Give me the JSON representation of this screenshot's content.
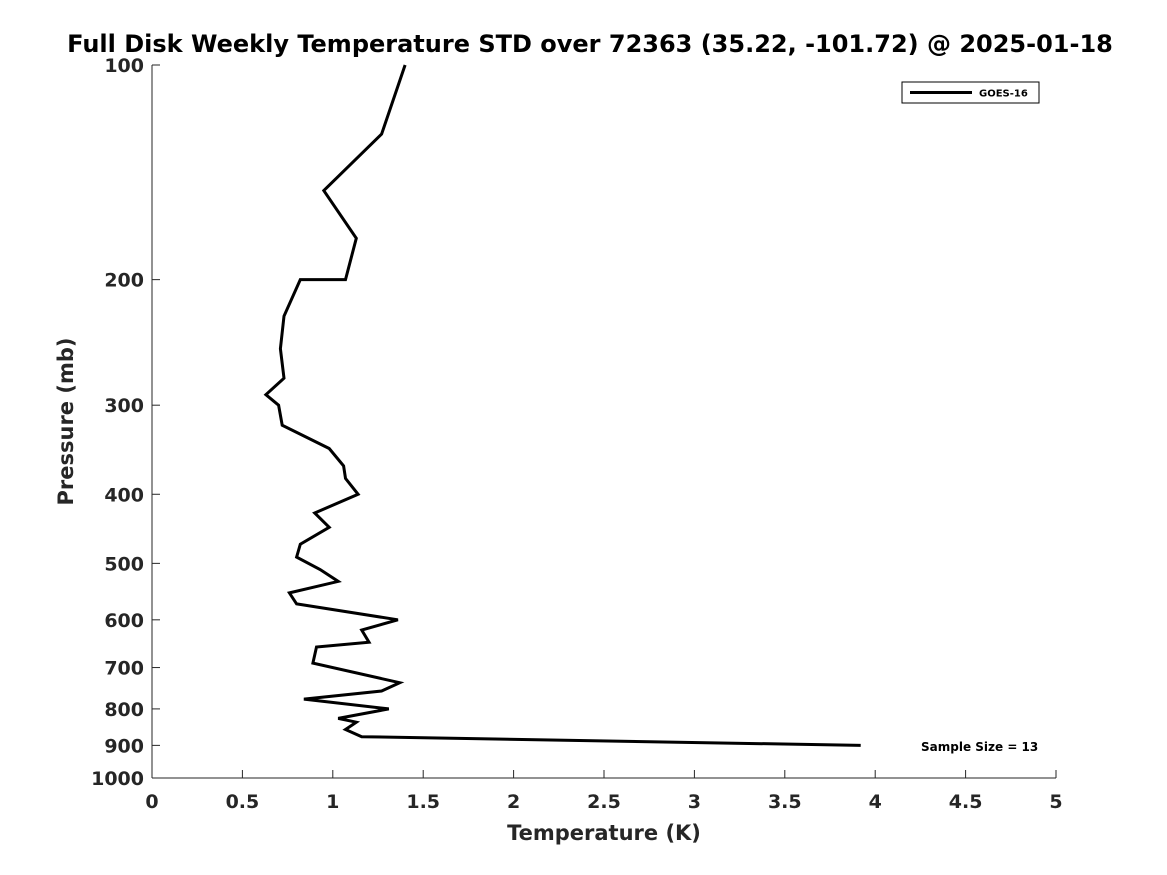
{
  "chart_data": {
    "type": "line",
    "title": "Full Disk Weekly Temperature STD over 72363 (35.22, -101.72) @ 2025-01-18",
    "xlabel": "Temperature (K)",
    "ylabel": "Pressure (mb)",
    "xlim": [
      0,
      5
    ],
    "ylim": [
      100,
      1000
    ],
    "y_scale": "log",
    "y_reversed": true,
    "x_ticks": [
      0,
      0.5,
      1,
      1.5,
      2,
      2.5,
      3,
      3.5,
      4,
      4.5,
      5
    ],
    "x_tick_labels": [
      "0",
      "0.5",
      "1",
      "1.5",
      "2",
      "2.5",
      "3",
      "3.5",
      "4",
      "4.5",
      "5"
    ],
    "y_ticks": [
      100,
      200,
      300,
      400,
      500,
      600,
      700,
      800,
      900,
      1000
    ],
    "y_tick_labels": [
      "100",
      "200",
      "300",
      "400",
      "500",
      "600",
      "700",
      "800",
      "900",
      "1000"
    ],
    "grid": false,
    "legend_position": "top-right",
    "series": [
      {
        "name": "GOES-16",
        "color": "#000000",
        "points": [
          {
            "t": 1.4,
            "p": 100
          },
          {
            "t": 1.27,
            "p": 125
          },
          {
            "t": 0.95,
            "p": 150
          },
          {
            "t": 1.13,
            "p": 175
          },
          {
            "t": 1.07,
            "p": 200
          },
          {
            "t": 0.82,
            "p": 200
          },
          {
            "t": 0.73,
            "p": 225
          },
          {
            "t": 0.71,
            "p": 250
          },
          {
            "t": 0.73,
            "p": 275
          },
          {
            "t": 0.63,
            "p": 290
          },
          {
            "t": 0.7,
            "p": 300
          },
          {
            "t": 0.72,
            "p": 320
          },
          {
            "t": 0.98,
            "p": 345
          },
          {
            "t": 1.06,
            "p": 365
          },
          {
            "t": 1.07,
            "p": 380
          },
          {
            "t": 1.14,
            "p": 400
          },
          {
            "t": 0.9,
            "p": 425
          },
          {
            "t": 0.98,
            "p": 445
          },
          {
            "t": 0.82,
            "p": 470
          },
          {
            "t": 0.8,
            "p": 490
          },
          {
            "t": 0.93,
            "p": 510
          },
          {
            "t": 1.03,
            "p": 530
          },
          {
            "t": 0.76,
            "p": 550
          },
          {
            "t": 0.8,
            "p": 570
          },
          {
            "t": 1.36,
            "p": 600
          },
          {
            "t": 1.16,
            "p": 620
          },
          {
            "t": 1.2,
            "p": 645
          },
          {
            "t": 0.91,
            "p": 655
          },
          {
            "t": 0.89,
            "p": 690
          },
          {
            "t": 1.37,
            "p": 735
          },
          {
            "t": 1.27,
            "p": 755
          },
          {
            "t": 0.84,
            "p": 775
          },
          {
            "t": 1.31,
            "p": 800
          },
          {
            "t": 1.03,
            "p": 825
          },
          {
            "t": 1.13,
            "p": 835
          },
          {
            "t": 1.07,
            "p": 855
          },
          {
            "t": 1.16,
            "p": 875
          },
          {
            "t": 3.92,
            "p": 900
          }
        ]
      }
    ],
    "annotations": [
      {
        "text": "Sample Size = 13"
      }
    ]
  }
}
